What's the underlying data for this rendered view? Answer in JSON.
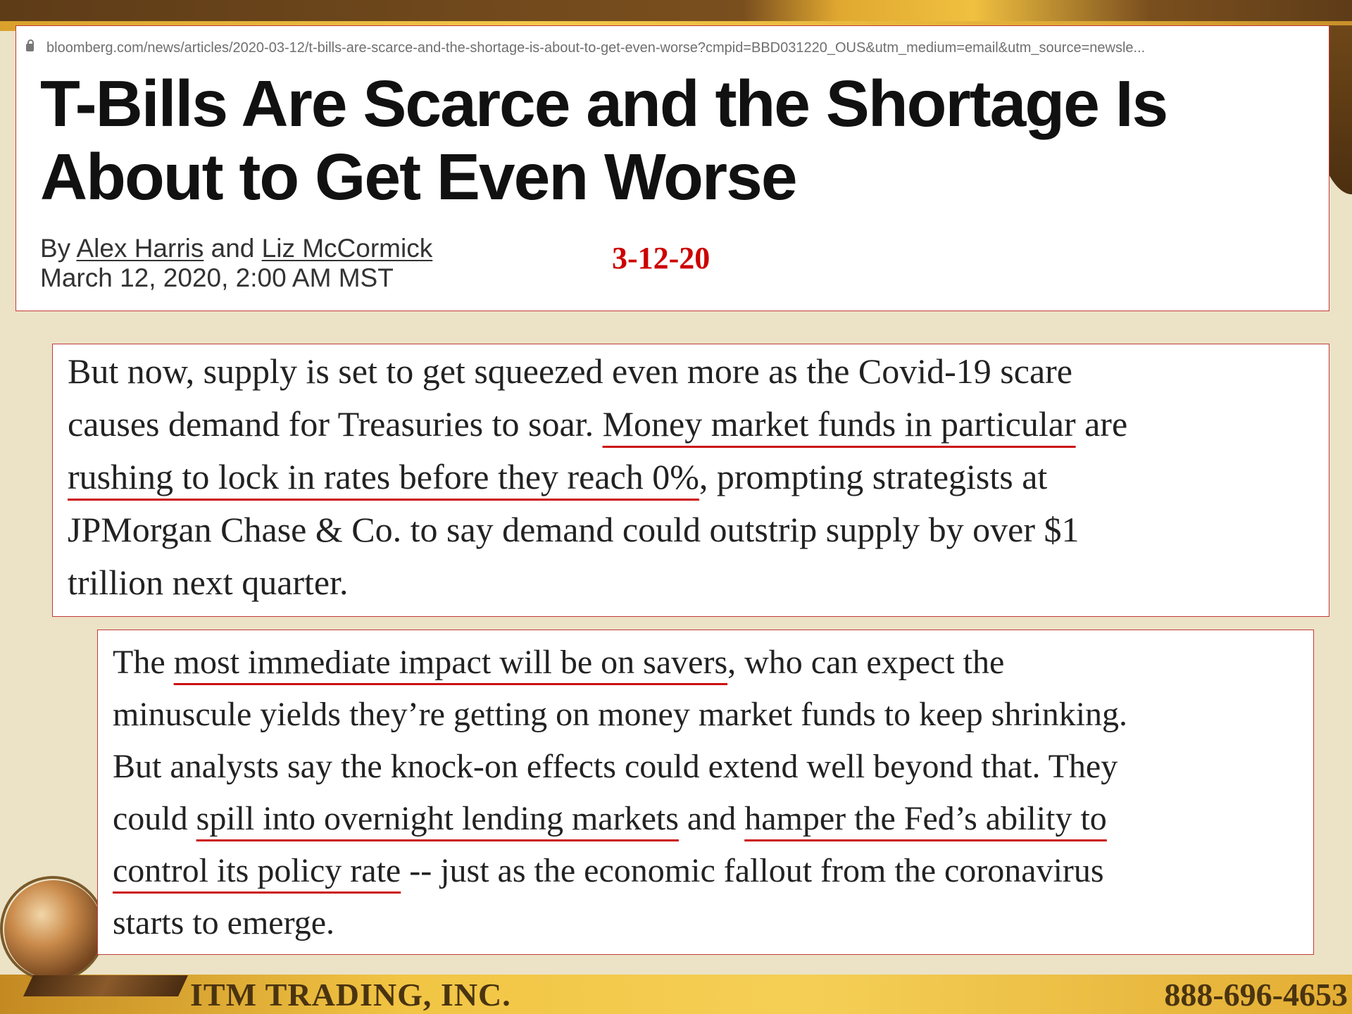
{
  "header": {
    "url": "bloomberg.com/news/articles/2020-03-12/t-bills-are-scarce-and-the-shortage-is-about-to-get-even-worse?cmpid=BBD031220_OUS&utm_medium=email&utm_source=newsle...",
    "headline_line1": "T-Bills Are Scarce and the Shortage Is",
    "headline_line2": "About to Get Even Worse",
    "byline_prefix": "By",
    "author1": "Alex Harris",
    "byline_and": "and",
    "author2": "Liz McCormick",
    "date": "March 12, 2020, 2:00 AM MST",
    "stamp": "3-12-20"
  },
  "para1": {
    "l1": "But now, supply is set to get squeezed even more as the Covid-19 scare",
    "l2a": "causes demand for Treasuries to soar. ",
    "l2u": "Money market funds in particular",
    "l2b": " are",
    "l3u": "rushing to lock in rates before they reach 0%",
    "l3b": ", prompting strategists at",
    "l4": "JPMorgan Chase & Co. to say demand could outstrip supply by over $1",
    "l5": "trillion next quarter."
  },
  "para2": {
    "l1a": "The ",
    "l1u": "most immediate impact will be on savers",
    "l1b": ", who can expect the",
    "l2": "minuscule yields they’re getting on money market funds to keep shrinking.",
    "l3": "But analysts say the knock-on effects could extend well beyond that. They",
    "l4a": "could ",
    "l4u1": "spill into overnight lending markets",
    "l4b": " and ",
    "l4u2": "hamper the Fed’s ability to",
    "l5u": "control its policy rate",
    "l5b": " -- just as the economic fallout from the coronavirus",
    "l6": "starts to emerge."
  },
  "footer": {
    "company": "ITM TRADING, INC.",
    "phone": "888-696-4653"
  },
  "colors": {
    "underline": "#cc1111",
    "stamp": "#cc0000",
    "border": "#c23a3a",
    "background": "#ece2c6"
  }
}
